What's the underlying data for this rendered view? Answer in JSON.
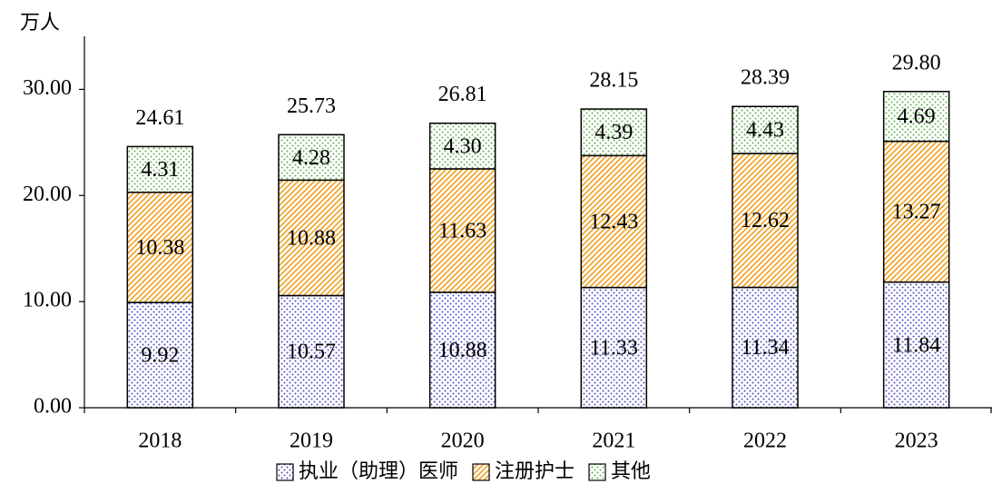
{
  "chart_data": {
    "type": "stacked_bar",
    "y_label": "万人",
    "categories": [
      "2018",
      "2019",
      "2020",
      "2021",
      "2022",
      "2023"
    ],
    "series": [
      {
        "name": "执业（助理）医师",
        "color": "#5050c0",
        "pattern": "dots",
        "values": [
          9.92,
          10.57,
          10.88,
          11.33,
          11.34,
          11.84
        ],
        "value_labels": [
          "9.92",
          "10.57",
          "10.88",
          "11.33",
          "11.34",
          "11.84"
        ]
      },
      {
        "name": "注册护士",
        "color": "#f0a020",
        "pattern": "hatch",
        "values": [
          10.38,
          10.88,
          11.63,
          12.43,
          12.62,
          13.27
        ],
        "value_labels": [
          "10.38",
          "10.88",
          "11.63",
          "12.43",
          "12.62",
          "13.27"
        ]
      },
      {
        "name": "其他",
        "color": "#60b050",
        "pattern": "dots",
        "values": [
          4.31,
          4.28,
          4.3,
          4.39,
          4.43,
          4.69
        ],
        "value_labels": [
          "4.31",
          "4.28",
          "4.30",
          "4.39",
          "4.43",
          "4.69"
        ]
      }
    ],
    "totals": [
      24.61,
      25.73,
      26.81,
      28.15,
      28.39,
      29.8
    ],
    "total_labels": [
      "24.61",
      "25.73",
      "26.81",
      "28.15",
      "28.39",
      "29.80"
    ],
    "ylim": [
      0,
      35
    ],
    "yticks": [
      {
        "value": 0,
        "label": "0.00"
      },
      {
        "value": 10,
        "label": "10.00"
      },
      {
        "value": 20,
        "label": "20.00"
      },
      {
        "value": 30,
        "label": "30.00"
      }
    ]
  }
}
